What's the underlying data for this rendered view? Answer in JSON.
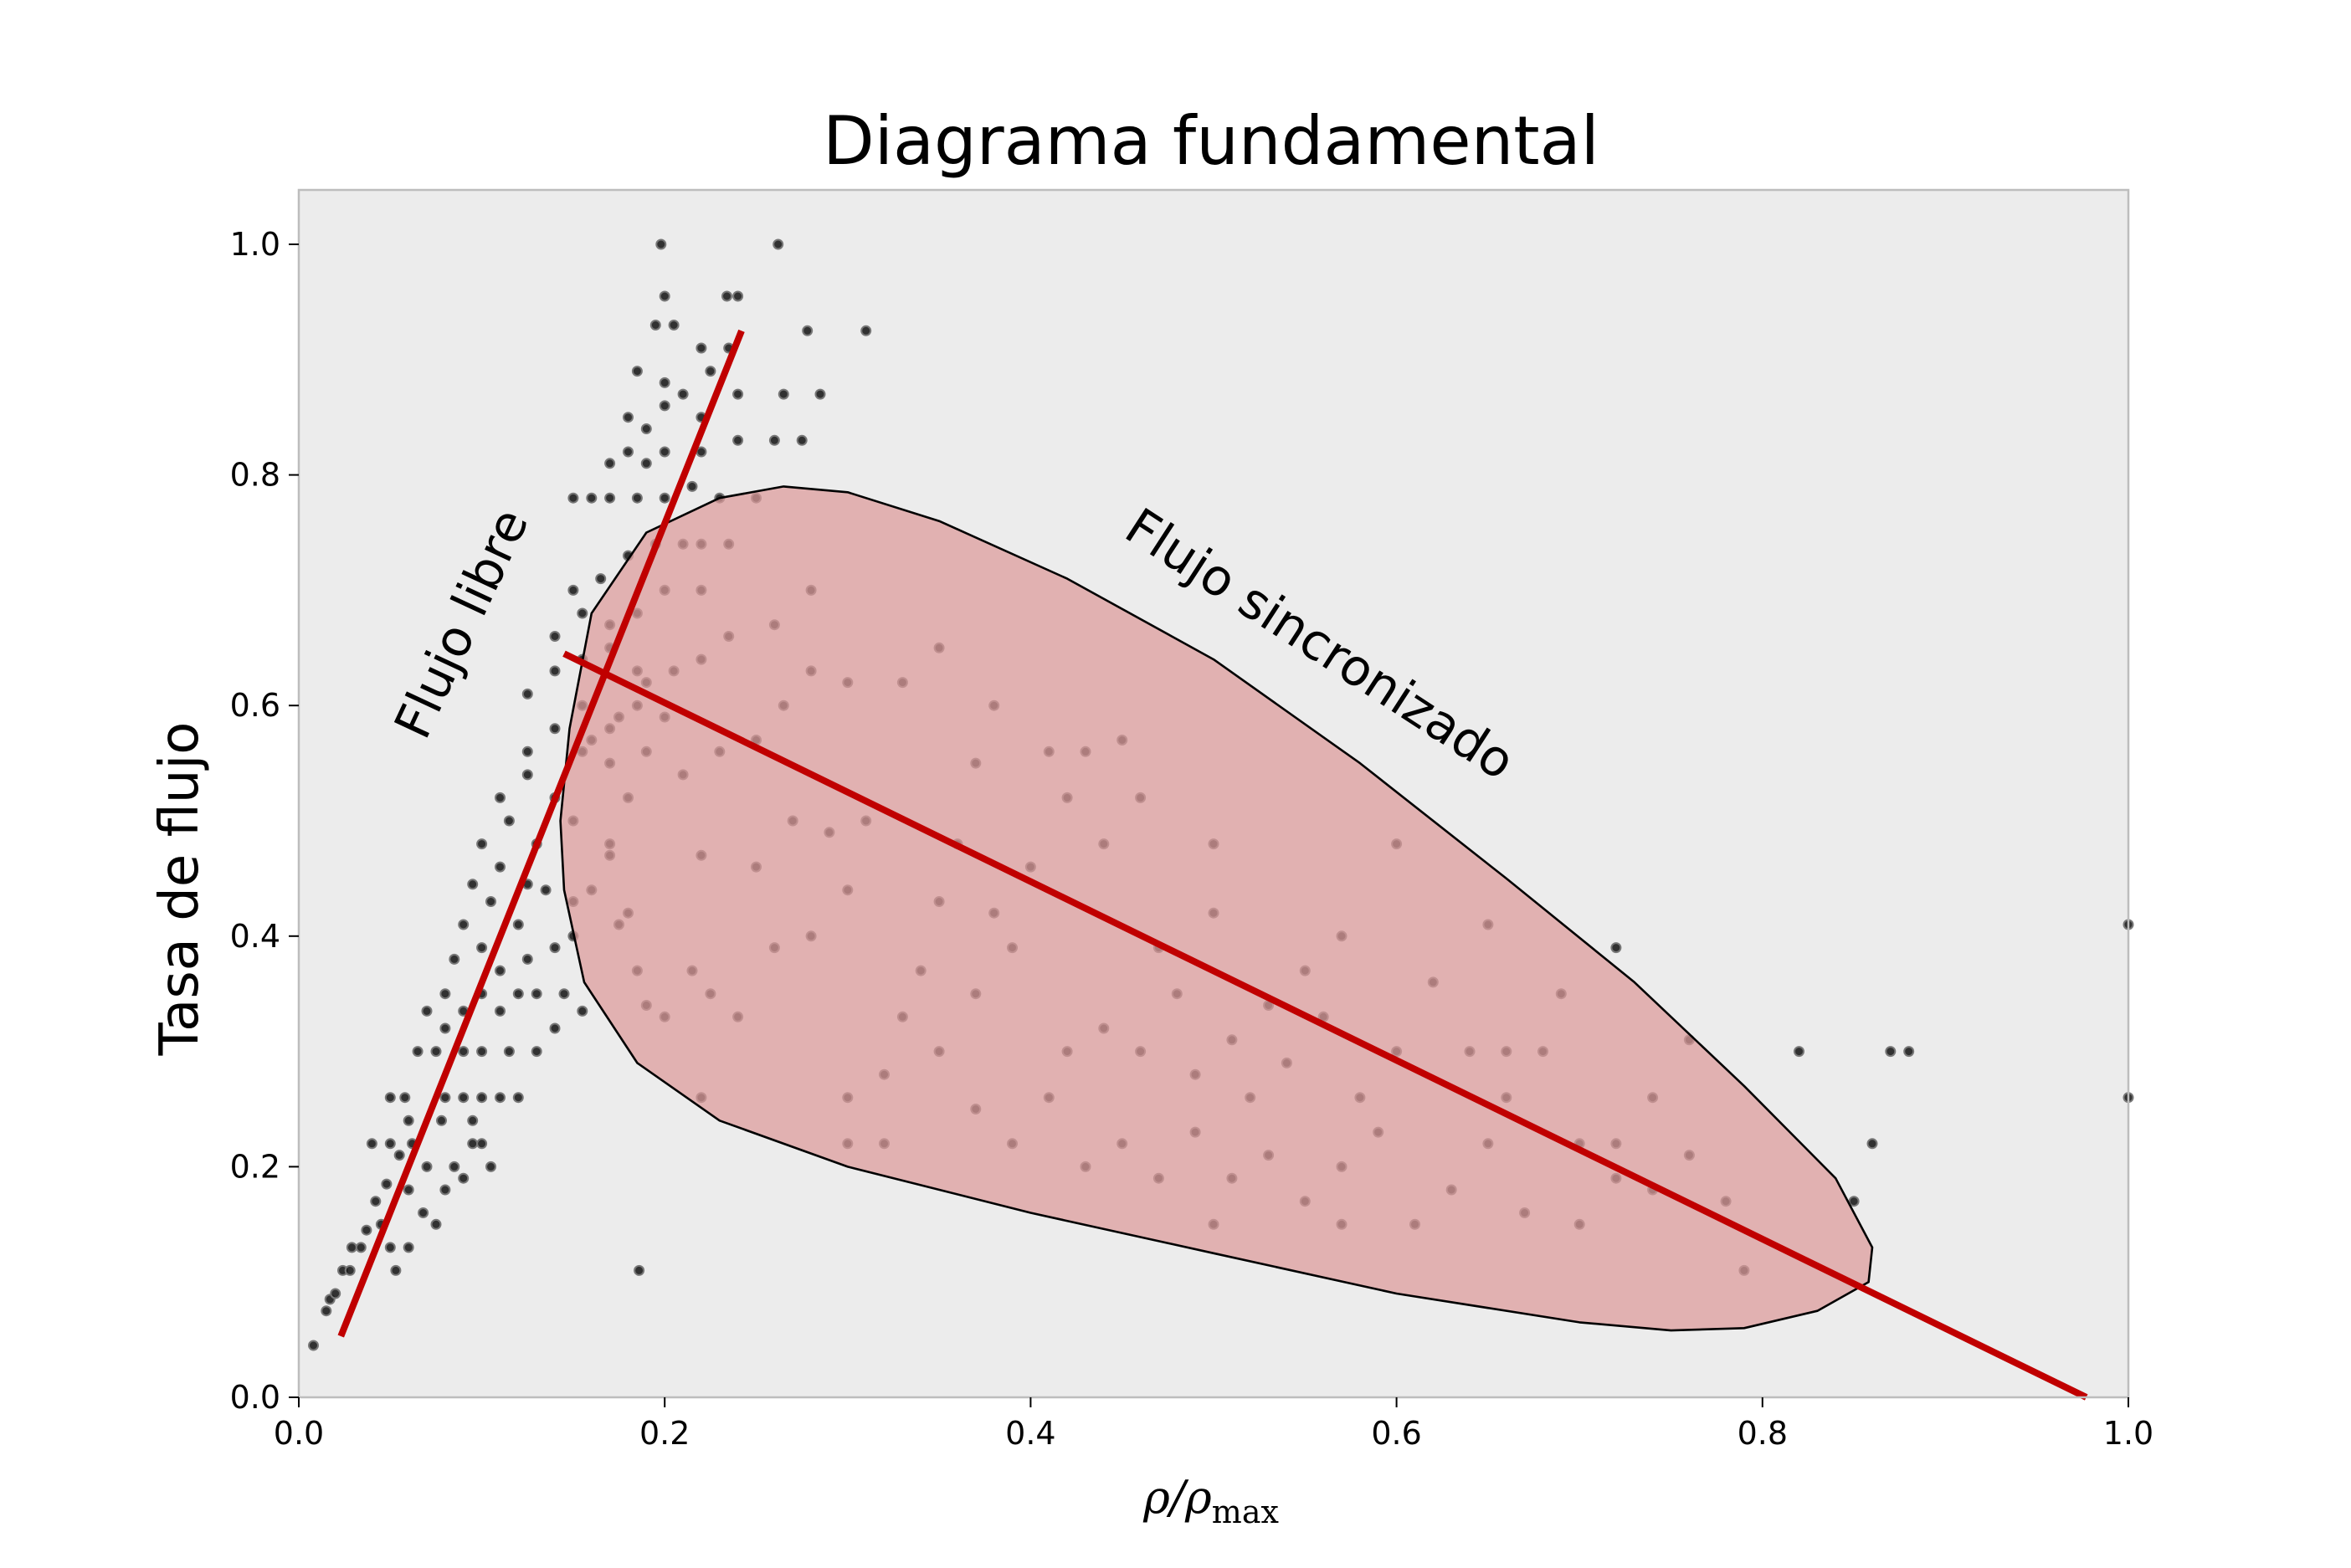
{
  "chart_data": {
    "type": "scatter",
    "title": "Diagrama fundamental",
    "xlabel": {
      "base": "ρ/ρ",
      "sub": "max"
    },
    "ylabel": "Tasa de flujo",
    "xlim": [
      0,
      1
    ],
    "ylim": [
      0,
      1.05
    ],
    "x_ticks": [
      0.0,
      0.2,
      0.4,
      0.6,
      0.8,
      1.0
    ],
    "x_tick_labels": [
      "0.0",
      "0.2",
      "0.4",
      "0.6",
      "0.8",
      "1.0"
    ],
    "y_ticks": [
      0.0,
      0.2,
      0.4,
      0.6,
      0.8,
      1.0
    ],
    "y_tick_labels": [
      "0.0",
      "0.2",
      "0.4",
      "0.6",
      "0.8",
      "1.0"
    ],
    "grid": false,
    "legend": "none",
    "colors": {
      "plot_background": "#ececec",
      "points": "#111111",
      "fit_lines": "#c00000",
      "region_fill": "#dc9a9a",
      "region_edge": "#000000"
    },
    "annotations": {
      "free_flow": "Flujo libre",
      "synchronized": "Flujo sincronizado"
    },
    "free_flow_line": {
      "x": [
        0.023,
        0.242
      ],
      "y": [
        0.053,
        0.925
      ]
    },
    "congested_line": {
      "x": [
        0.145,
        0.977
      ],
      "y": [
        0.645,
        0.0
      ]
    },
    "synchronized_region": {
      "outline_x": [
        0.148,
        0.16,
        0.19,
        0.23,
        0.265,
        0.3,
        0.35,
        0.42,
        0.5,
        0.58,
        0.66,
        0.73,
        0.79,
        0.84,
        0.86,
        0.858,
        0.83,
        0.79,
        0.75,
        0.7,
        0.6,
        0.5,
        0.4,
        0.3,
        0.23,
        0.185,
        0.156,
        0.145,
        0.143,
        0.148
      ],
      "outline_y": [
        0.58,
        0.68,
        0.75,
        0.78,
        0.79,
        0.785,
        0.76,
        0.71,
        0.64,
        0.55,
        0.45,
        0.36,
        0.27,
        0.19,
        0.13,
        0.1,
        0.075,
        0.06,
        0.058,
        0.065,
        0.09,
        0.125,
        0.16,
        0.2,
        0.24,
        0.29,
        0.36,
        0.44,
        0.5,
        0.58
      ]
    },
    "series": [
      {
        "values": [
          [
            0.008,
            0.045
          ],
          [
            0.015,
            0.075
          ],
          [
            0.017,
            0.085
          ],
          [
            0.02,
            0.09
          ],
          [
            0.024,
            0.11
          ],
          [
            0.028,
            0.11
          ],
          [
            0.029,
            0.13
          ],
          [
            0.034,
            0.13
          ],
          [
            0.037,
            0.145
          ],
          [
            0.045,
            0.15
          ],
          [
            0.05,
            0.13
          ],
          [
            0.06,
            0.13
          ],
          [
            0.053,
            0.11
          ],
          [
            0.042,
            0.17
          ],
          [
            0.048,
            0.185
          ],
          [
            0.06,
            0.18
          ],
          [
            0.068,
            0.16
          ],
          [
            0.075,
            0.15
          ],
          [
            0.08,
            0.18
          ],
          [
            0.04,
            0.22
          ],
          [
            0.05,
            0.22
          ],
          [
            0.055,
            0.21
          ],
          [
            0.062,
            0.22
          ],
          [
            0.07,
            0.2
          ],
          [
            0.078,
            0.24
          ],
          [
            0.085,
            0.2
          ],
          [
            0.09,
            0.19
          ],
          [
            0.095,
            0.22
          ],
          [
            0.1,
            0.22
          ],
          [
            0.05,
            0.26
          ],
          [
            0.058,
            0.26
          ],
          [
            0.06,
            0.24
          ],
          [
            0.08,
            0.26
          ],
          [
            0.09,
            0.26
          ],
          [
            0.1,
            0.26
          ],
          [
            0.11,
            0.26
          ],
          [
            0.12,
            0.26
          ],
          [
            0.095,
            0.24
          ],
          [
            0.105,
            0.2
          ],
          [
            0.065,
            0.3
          ],
          [
            0.075,
            0.3
          ],
          [
            0.08,
            0.32
          ],
          [
            0.09,
            0.3
          ],
          [
            0.1,
            0.3
          ],
          [
            0.115,
            0.3
          ],
          [
            0.13,
            0.3
          ],
          [
            0.14,
            0.32
          ],
          [
            0.07,
            0.335
          ],
          [
            0.08,
            0.35
          ],
          [
            0.09,
            0.335
          ],
          [
            0.1,
            0.35
          ],
          [
            0.11,
            0.335
          ],
          [
            0.12,
            0.35
          ],
          [
            0.13,
            0.35
          ],
          [
            0.145,
            0.35
          ],
          [
            0.155,
            0.335
          ],
          [
            0.085,
            0.38
          ],
          [
            0.1,
            0.39
          ],
          [
            0.11,
            0.37
          ],
          [
            0.125,
            0.38
          ],
          [
            0.14,
            0.39
          ],
          [
            0.15,
            0.4
          ],
          [
            0.09,
            0.41
          ],
          [
            0.105,
            0.43
          ],
          [
            0.12,
            0.41
          ],
          [
            0.135,
            0.44
          ],
          [
            0.15,
            0.43
          ],
          [
            0.16,
            0.44
          ],
          [
            0.175,
            0.41
          ],
          [
            0.095,
            0.445
          ],
          [
            0.11,
            0.46
          ],
          [
            0.125,
            0.445
          ],
          [
            0.1,
            0.48
          ],
          [
            0.115,
            0.5
          ],
          [
            0.13,
            0.48
          ],
          [
            0.15,
            0.5
          ],
          [
            0.17,
            0.48
          ],
          [
            0.18,
            0.52
          ],
          [
            0.11,
            0.52
          ],
          [
            0.125,
            0.54
          ],
          [
            0.14,
            0.52
          ],
          [
            0.155,
            0.56
          ],
          [
            0.17,
            0.55
          ],
          [
            0.19,
            0.56
          ],
          [
            0.125,
            0.56
          ],
          [
            0.14,
            0.58
          ],
          [
            0.155,
            0.6
          ],
          [
            0.17,
            0.58
          ],
          [
            0.185,
            0.6
          ],
          [
            0.2,
            0.59
          ],
          [
            0.125,
            0.61
          ],
          [
            0.14,
            0.63
          ],
          [
            0.155,
            0.64
          ],
          [
            0.17,
            0.65
          ],
          [
            0.185,
            0.63
          ],
          [
            0.14,
            0.66
          ],
          [
            0.155,
            0.68
          ],
          [
            0.17,
            0.67
          ],
          [
            0.185,
            0.68
          ],
          [
            0.2,
            0.7
          ],
          [
            0.22,
            0.7
          ],
          [
            0.15,
            0.7
          ],
          [
            0.165,
            0.71
          ],
          [
            0.18,
            0.73
          ],
          [
            0.195,
            0.74
          ],
          [
            0.21,
            0.74
          ],
          [
            0.22,
            0.74
          ],
          [
            0.235,
            0.74
          ],
          [
            0.15,
            0.78
          ],
          [
            0.16,
            0.78
          ],
          [
            0.17,
            0.78
          ],
          [
            0.185,
            0.78
          ],
          [
            0.2,
            0.78
          ],
          [
            0.215,
            0.79
          ],
          [
            0.23,
            0.78
          ],
          [
            0.25,
            0.78
          ],
          [
            0.17,
            0.81
          ],
          [
            0.18,
            0.82
          ],
          [
            0.19,
            0.81
          ],
          [
            0.2,
            0.82
          ],
          [
            0.22,
            0.82
          ],
          [
            0.24,
            0.83
          ],
          [
            0.26,
            0.83
          ],
          [
            0.275,
            0.83
          ],
          [
            0.18,
            0.85
          ],
          [
            0.19,
            0.84
          ],
          [
            0.2,
            0.86
          ],
          [
            0.21,
            0.87
          ],
          [
            0.22,
            0.85
          ],
          [
            0.24,
            0.87
          ],
          [
            0.265,
            0.87
          ],
          [
            0.285,
            0.87
          ],
          [
            0.185,
            0.89
          ],
          [
            0.2,
            0.88
          ],
          [
            0.22,
            0.91
          ],
          [
            0.225,
            0.89
          ],
          [
            0.195,
            0.93
          ],
          [
            0.205,
            0.93
          ],
          [
            0.2,
            0.955
          ],
          [
            0.234,
            0.955
          ],
          [
            0.24,
            0.955
          ],
          [
            0.198,
            1.0
          ],
          [
            0.262,
            1.0
          ],
          [
            0.278,
            0.925
          ],
          [
            0.31,
            0.925
          ],
          [
            0.235,
            0.91
          ],
          [
            0.16,
            0.57
          ],
          [
            0.175,
            0.59
          ],
          [
            0.19,
            0.62
          ],
          [
            0.205,
            0.63
          ],
          [
            0.22,
            0.64
          ],
          [
            0.235,
            0.66
          ],
          [
            0.26,
            0.67
          ],
          [
            0.28,
            0.7
          ],
          [
            0.21,
            0.54
          ],
          [
            0.23,
            0.56
          ],
          [
            0.25,
            0.57
          ],
          [
            0.265,
            0.6
          ],
          [
            0.28,
            0.63
          ],
          [
            0.3,
            0.62
          ],
          [
            0.22,
            0.47
          ],
          [
            0.25,
            0.46
          ],
          [
            0.27,
            0.5
          ],
          [
            0.29,
            0.49
          ],
          [
            0.31,
            0.5
          ],
          [
            0.17,
            0.47
          ],
          [
            0.18,
            0.42
          ],
          [
            0.185,
            0.37
          ],
          [
            0.19,
            0.34
          ],
          [
            0.2,
            0.33
          ],
          [
            0.215,
            0.37
          ],
          [
            0.225,
            0.35
          ],
          [
            0.24,
            0.33
          ],
          [
            0.26,
            0.39
          ],
          [
            0.28,
            0.4
          ],
          [
            0.3,
            0.44
          ],
          [
            0.3,
            0.26
          ],
          [
            0.32,
            0.28
          ],
          [
            0.33,
            0.33
          ],
          [
            0.34,
            0.37
          ],
          [
            0.35,
            0.43
          ],
          [
            0.36,
            0.48
          ],
          [
            0.37,
            0.35
          ],
          [
            0.38,
            0.42
          ],
          [
            0.39,
            0.39
          ],
          [
            0.4,
            0.46
          ],
          [
            0.33,
            0.62
          ],
          [
            0.35,
            0.65
          ],
          [
            0.37,
            0.55
          ],
          [
            0.38,
            0.6
          ],
          [
            0.41,
            0.56
          ],
          [
            0.43,
            0.56
          ],
          [
            0.45,
            0.57
          ],
          [
            0.46,
            0.52
          ],
          [
            0.42,
            0.52
          ],
          [
            0.44,
            0.48
          ],
          [
            0.5,
            0.48
          ],
          [
            0.5,
            0.42
          ],
          [
            0.47,
            0.39
          ],
          [
            0.48,
            0.35
          ],
          [
            0.42,
            0.3
          ],
          [
            0.44,
            0.32
          ],
          [
            0.46,
            0.3
          ],
          [
            0.49,
            0.28
          ],
          [
            0.51,
            0.31
          ],
          [
            0.53,
            0.34
          ],
          [
            0.55,
            0.37
          ],
          [
            0.57,
            0.4
          ],
          [
            0.6,
            0.48
          ],
          [
            0.35,
            0.3
          ],
          [
            0.37,
            0.25
          ],
          [
            0.39,
            0.22
          ],
          [
            0.41,
            0.26
          ],
          [
            0.43,
            0.2
          ],
          [
            0.45,
            0.22
          ],
          [
            0.47,
            0.19
          ],
          [
            0.49,
            0.23
          ],
          [
            0.51,
            0.19
          ],
          [
            0.53,
            0.21
          ],
          [
            0.55,
            0.17
          ],
          [
            0.57,
            0.2
          ],
          [
            0.59,
            0.23
          ],
          [
            0.61,
            0.15
          ],
          [
            0.63,
            0.18
          ],
          [
            0.65,
            0.22
          ],
          [
            0.67,
            0.16
          ],
          [
            0.7,
            0.15
          ],
          [
            0.72,
            0.19
          ],
          [
            0.66,
            0.3
          ],
          [
            0.69,
            0.35
          ],
          [
            0.72,
            0.39
          ],
          [
            0.74,
            0.26
          ],
          [
            0.52,
            0.26
          ],
          [
            0.54,
            0.29
          ],
          [
            0.56,
            0.33
          ],
          [
            0.58,
            0.26
          ],
          [
            0.6,
            0.3
          ],
          [
            0.62,
            0.36
          ],
          [
            0.64,
            0.3
          ],
          [
            0.66,
            0.26
          ],
          [
            0.68,
            0.3
          ],
          [
            0.7,
            0.22
          ],
          [
            0.72,
            0.22
          ],
          [
            0.74,
            0.18
          ],
          [
            0.76,
            0.21
          ],
          [
            0.76,
            0.31
          ],
          [
            0.78,
            0.17
          ],
          [
            0.79,
            0.11
          ],
          [
            0.82,
            0.3
          ],
          [
            0.85,
            0.17
          ],
          [
            0.86,
            0.22
          ],
          [
            0.87,
            0.3
          ],
          [
            0.88,
            0.3
          ],
          [
            0.5,
            0.15
          ],
          [
            0.57,
            0.15
          ],
          [
            0.3,
            0.22
          ],
          [
            0.32,
            0.22
          ],
          [
            0.22,
            0.26
          ],
          [
            0.186,
            0.11
          ],
          [
            0.65,
            0.41
          ],
          [
            1.0,
            0.41
          ],
          [
            1.0,
            0.26
          ]
        ]
      }
    ]
  }
}
